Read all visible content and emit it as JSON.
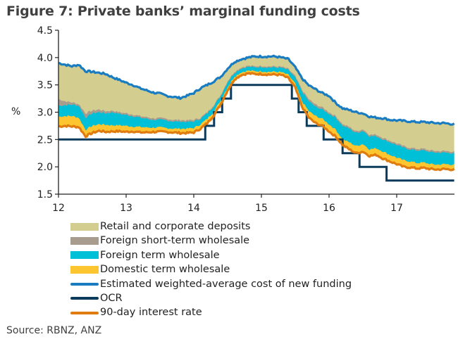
{
  "title": "Figure 7: Private banks’ marginal funding costs",
  "source": "Source: RBNZ, ANZ",
  "chart_data": {
    "type": "area",
    "title": "Figure 7: Private banks’ marginal funding costs",
    "xlabel": "",
    "ylabel": "%",
    "xlim": [
      12,
      17.85
    ],
    "ylim": [
      1.5,
      4.5
    ],
    "x_ticks": [
      12,
      13,
      14,
      15,
      16,
      17
    ],
    "x_tick_labels": [
      "12",
      "13",
      "14",
      "15",
      "16",
      "17"
    ],
    "y_ticks": [
      1.5,
      2.0,
      2.5,
      3.0,
      3.5,
      4.0,
      4.5
    ],
    "y_tick_labels": [
      "1.5",
      "2.0",
      "2.5",
      "3.0",
      "3.5",
      "4.0",
      "4.5"
    ],
    "grid": false,
    "legend_position": "bottom",
    "x": [
      12.0,
      12.1,
      12.2,
      12.3,
      12.4,
      12.5,
      12.6,
      12.7,
      12.8,
      12.9,
      13.0,
      13.1,
      13.2,
      13.3,
      13.4,
      13.5,
      13.6,
      13.7,
      13.8,
      13.9,
      14.0,
      14.1,
      14.2,
      14.3,
      14.4,
      14.5,
      14.6,
      14.7,
      14.8,
      14.9,
      15.0,
      15.1,
      15.2,
      15.3,
      15.4,
      15.5,
      15.6,
      15.7,
      15.8,
      15.9,
      16.0,
      16.1,
      16.2,
      16.3,
      16.4,
      16.5,
      16.6,
      16.7,
      16.8,
      16.9,
      17.0,
      17.1,
      17.2,
      17.3,
      17.4,
      17.5,
      17.6,
      17.7,
      17.85
    ],
    "series": [
      {
        "name": "90-day interest rate",
        "kind": "line",
        "color": "#E07B10",
        "values": [
          2.74,
          2.75,
          2.74,
          2.73,
          2.56,
          2.62,
          2.66,
          2.64,
          2.65,
          2.65,
          2.64,
          2.65,
          2.63,
          2.63,
          2.64,
          2.64,
          2.64,
          2.63,
          2.62,
          2.62,
          2.63,
          2.7,
          2.8,
          2.95,
          3.15,
          3.4,
          3.6,
          3.68,
          3.71,
          3.7,
          3.7,
          3.69,
          3.69,
          3.68,
          3.62,
          3.45,
          3.1,
          2.9,
          2.8,
          2.75,
          2.65,
          2.55,
          2.4,
          2.32,
          2.25,
          2.28,
          2.2,
          2.22,
          2.15,
          2.1,
          2.05,
          2.0,
          1.99,
          1.97,
          1.98,
          1.96,
          1.95,
          1.96,
          1.95
        ]
      },
      {
        "name": "Domestic term wholesale",
        "kind": "area",
        "color": "#FDC52F",
        "top": [
          2.92,
          2.93,
          2.93,
          2.9,
          2.68,
          2.75,
          2.78,
          2.77,
          2.76,
          2.76,
          2.75,
          2.74,
          2.73,
          2.72,
          2.72,
          2.72,
          2.71,
          2.7,
          2.7,
          2.7,
          2.71,
          2.78,
          2.88,
          3.02,
          3.22,
          3.46,
          3.65,
          3.73,
          3.76,
          3.75,
          3.75,
          3.74,
          3.74,
          3.73,
          3.68,
          3.52,
          3.2,
          3.02,
          2.93,
          2.88,
          2.78,
          2.68,
          2.5,
          2.45,
          2.38,
          2.42,
          2.32,
          2.34,
          2.28,
          2.22,
          2.17,
          2.12,
          2.1,
          2.07,
          2.08,
          2.05,
          2.04,
          2.05,
          2.04
        ]
      },
      {
        "name": "Foreign term wholesale",
        "kind": "area",
        "color": "#00C0D8",
        "top": [
          3.12,
          3.13,
          3.14,
          3.12,
          2.9,
          2.98,
          3.0,
          2.98,
          3.0,
          2.97,
          2.95,
          2.93,
          2.9,
          2.88,
          2.86,
          2.86,
          2.85,
          2.83,
          2.83,
          2.82,
          2.83,
          2.88,
          2.98,
          3.12,
          3.3,
          3.55,
          3.72,
          3.8,
          3.83,
          3.82,
          3.83,
          3.82,
          3.82,
          3.81,
          3.77,
          3.63,
          3.38,
          3.2,
          3.1,
          3.05,
          2.97,
          2.9,
          2.75,
          2.7,
          2.62,
          2.66,
          2.56,
          2.56,
          2.5,
          2.45,
          2.4,
          2.35,
          2.32,
          2.3,
          2.3,
          2.27,
          2.26,
          2.26,
          2.25
        ]
      },
      {
        "name": "Foreign short-term wholesale",
        "kind": "area",
        "color": "#A89C8E",
        "top": [
          3.24,
          3.2,
          3.18,
          3.15,
          2.98,
          3.03,
          3.05,
          3.02,
          3.03,
          3.0,
          2.98,
          2.96,
          2.93,
          2.91,
          2.89,
          2.89,
          2.88,
          2.86,
          2.86,
          2.85,
          2.86,
          2.9,
          3.0,
          3.14,
          3.32,
          3.57,
          3.74,
          3.82,
          3.85,
          3.84,
          3.85,
          3.84,
          3.84,
          3.83,
          3.79,
          3.66,
          3.41,
          3.24,
          3.14,
          3.09,
          3.0,
          2.93,
          2.78,
          2.73,
          2.65,
          2.69,
          2.59,
          2.59,
          2.53,
          2.48,
          2.43,
          2.38,
          2.35,
          2.33,
          2.33,
          2.3,
          2.29,
          2.29,
          2.28
        ]
      },
      {
        "name": "Retail and corporate deposits",
        "kind": "area",
        "color": "#D3CD8F",
        "top": [
          3.88,
          3.85,
          3.82,
          3.85,
          3.73,
          3.72,
          3.7,
          3.68,
          3.62,
          3.57,
          3.52,
          3.48,
          3.42,
          3.38,
          3.34,
          3.32,
          3.28,
          3.26,
          3.24,
          3.28,
          3.33,
          3.42,
          3.48,
          3.55,
          3.63,
          3.78,
          3.9,
          3.95,
          3.98,
          4.0,
          4.0,
          4.0,
          4.0,
          3.98,
          3.95,
          3.8,
          3.6,
          3.47,
          3.4,
          3.33,
          3.28,
          3.15,
          3.05,
          3.02,
          2.98,
          2.96,
          2.9,
          2.88,
          2.87,
          2.84,
          2.83,
          2.82,
          2.81,
          2.8,
          2.8,
          2.79,
          2.78,
          2.78,
          2.77
        ]
      },
      {
        "name": "Estimated weighted-average cost of new funding",
        "kind": "line",
        "color": "#1A7CC0",
        "values": [
          3.9,
          3.87,
          3.84,
          3.87,
          3.75,
          3.74,
          3.72,
          3.7,
          3.64,
          3.59,
          3.54,
          3.5,
          3.44,
          3.4,
          3.36,
          3.34,
          3.3,
          3.28,
          3.26,
          3.3,
          3.35,
          3.44,
          3.5,
          3.57,
          3.65,
          3.8,
          3.92,
          3.97,
          4.0,
          4.02,
          4.02,
          4.02,
          4.02,
          4.0,
          3.97,
          3.82,
          3.62,
          3.49,
          3.42,
          3.35,
          3.3,
          3.17,
          3.07,
          3.04,
          3.0,
          2.98,
          2.92,
          2.9,
          2.89,
          2.86,
          2.85,
          2.84,
          2.83,
          2.82,
          2.82,
          2.81,
          2.8,
          2.8,
          2.78
        ]
      },
      {
        "name": "OCR",
        "kind": "step",
        "color": "#0B3B5C",
        "steps": [
          [
            12.0,
            2.5
          ],
          [
            14.17,
            2.75
          ],
          [
            14.3,
            3.0
          ],
          [
            14.42,
            3.25
          ],
          [
            14.55,
            3.5
          ],
          [
            15.45,
            3.25
          ],
          [
            15.55,
            3.0
          ],
          [
            15.67,
            2.75
          ],
          [
            15.92,
            2.5
          ],
          [
            16.2,
            2.25
          ],
          [
            16.45,
            2.0
          ],
          [
            16.85,
            1.75
          ],
          [
            17.85,
            1.75
          ]
        ]
      }
    ]
  },
  "legend": [
    {
      "label": "Retail and corporate deposits",
      "type": "box",
      "color": "#D3CD8F"
    },
    {
      "label": "Foreign short-term wholesale",
      "type": "box",
      "color": "#A89C8E"
    },
    {
      "label": "Foreign term wholesale",
      "type": "box",
      "color": "#00C0D8"
    },
    {
      "label": "Domestic term wholesale",
      "type": "box",
      "color": "#FDC52F"
    },
    {
      "label": "Estimated weighted-average cost of new funding",
      "type": "line",
      "color": "#1A7CC0"
    },
    {
      "label": "OCR",
      "type": "line",
      "color": "#0B3B5C"
    },
    {
      "label": "90-day interest rate",
      "type": "line",
      "color": "#E07B10"
    }
  ]
}
